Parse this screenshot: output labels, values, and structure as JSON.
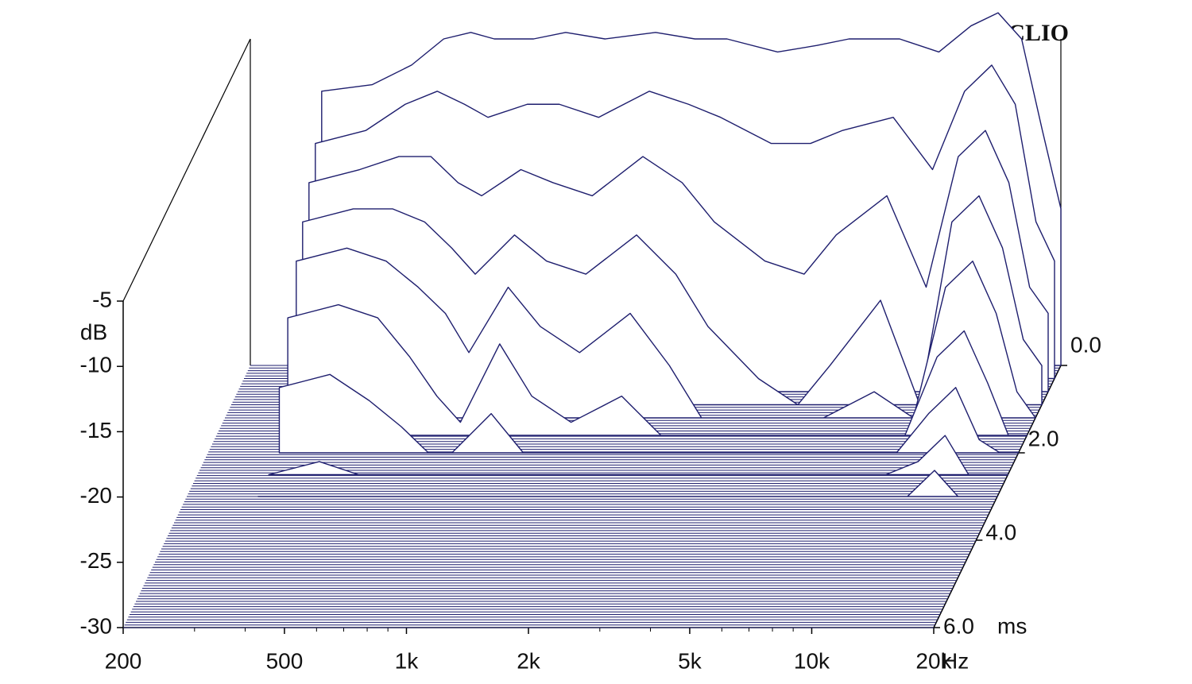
{
  "chart_data": {
    "type": "waterfall",
    "watermark": "CLIO",
    "y_unit": "dB",
    "x_unit": "Hz",
    "z_unit": "ms",
    "color": "#1e1e6e",
    "xscale": "log",
    "xlim": [
      200,
      20000
    ],
    "xticks": [
      200,
      500,
      {
        "value": 1000,
        "label": "1k"
      },
      {
        "value": 2000,
        "label": "2k"
      },
      {
        "value": 5000,
        "label": "5k"
      },
      {
        "value": 10000,
        "label": "10k"
      },
      {
        "value": 20000,
        "label": "20k"
      }
    ],
    "xminorticks": [
      300,
      400,
      600,
      700,
      800,
      900,
      3000,
      4000,
      6000,
      7000,
      8000,
      9000
    ],
    "ylim": [
      -30,
      -5
    ],
    "yticks": [
      -5,
      -10,
      -15,
      -20,
      -25,
      -30
    ],
    "zlim": [
      0,
      6
    ],
    "zticks": [
      {
        "value": 0,
        "label": "0.0"
      },
      {
        "value": 2,
        "label": "2.0"
      },
      {
        "value": 4,
        "label": "4.0"
      },
      {
        "value": 6,
        "label": "6.0"
      }
    ],
    "frequencies": [
      300,
      400,
      500,
      600,
      700,
      800,
      1000,
      1200,
      1500,
      2000,
      2500,
      3000,
      4000,
      5000,
      6000,
      8000,
      10000,
      12000,
      14000,
      16000,
      18000,
      20000
    ],
    "surface": [
      {
        "time": 0,
        "values": [
          -9,
          -8.5,
          -7,
          -5,
          -4.5,
          -5,
          -5,
          -4.5,
          -5,
          -4.5,
          -5,
          -5,
          -6,
          -5.5,
          -5,
          -5,
          -6,
          -4,
          -3,
          -5,
          -12,
          -18
        ]
      },
      {
        "time": 0.3,
        "values": [
          -12,
          -11,
          -9,
          -8,
          -9,
          -10,
          -9,
          -9,
          -10,
          -8,
          -9,
          -10,
          -12,
          -12,
          -11,
          -10,
          -14,
          -8,
          -6,
          -9,
          -18,
          -21
        ]
      },
      {
        "time": 0.6,
        "values": [
          -14,
          -13,
          -12,
          -12,
          -14,
          -15,
          -13,
          -14,
          -15,
          -12,
          -14,
          -17,
          -20,
          -21,
          -18,
          -15,
          -22,
          -12,
          -10,
          -14,
          -22,
          -24
        ]
      },
      {
        "time": 0.9,
        "values": [
          -16,
          -15,
          -15,
          -16,
          -18,
          -20,
          -17,
          -19,
          -20,
          -17,
          -20,
          -24,
          -28,
          -30,
          -27,
          -22,
          -30,
          -16,
          -14,
          -18,
          -25,
          -27
        ]
      },
      {
        "time": 1.2,
        "values": [
          -18,
          -17,
          -18,
          -20,
          -22,
          -25,
          -20,
          -23,
          -25,
          -22,
          -26,
          -30,
          -30,
          -30,
          -30,
          -28,
          -30,
          -20,
          -18,
          -22,
          -28,
          -30
        ]
      },
      {
        "time": 1.6,
        "values": [
          -21,
          -20,
          -21,
          -24,
          -27,
          -29,
          -23,
          -27,
          -29,
          -27,
          -30,
          -30,
          -30,
          -30,
          -30,
          -30,
          -30,
          -24,
          -22,
          -26,
          -30,
          -30
        ]
      },
      {
        "time": 2.0,
        "values": [
          -25,
          -24,
          -26,
          -28,
          -30,
          -30,
          -27,
          -30,
          -30,
          -30,
          -30,
          -30,
          -30,
          -30,
          -30,
          -30,
          -30,
          -27,
          -25,
          -29,
          -30,
          -30
        ]
      },
      {
        "time": 2.5,
        "values": [
          -30,
          -29,
          -30,
          -30,
          -30,
          -30,
          -30,
          -30,
          -30,
          -30,
          -30,
          -30,
          -30,
          -30,
          -30,
          -30,
          -30,
          -29,
          -27,
          -30,
          -30,
          -30
        ]
      },
      {
        "time": 3.0,
        "values": [
          -30,
          -30,
          -30,
          -30,
          -30,
          -30,
          -30,
          -30,
          -30,
          -30,
          -30,
          -30,
          -30,
          -30,
          -30,
          -30,
          -30,
          -30,
          -28,
          -30,
          -30,
          -30
        ]
      }
    ]
  }
}
